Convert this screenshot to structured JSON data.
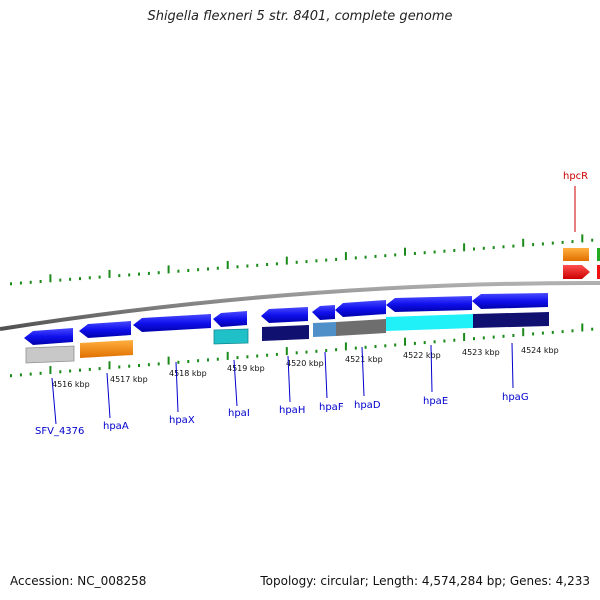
{
  "title": "Shigella flexneri 5 str. 8401, complete genome",
  "footer": {
    "accession": "Accession: NC_008258",
    "stats": "Topology: circular; Length: 4,574,284 bp; Genes: 4,233"
  },
  "kbp_labels": [
    "4516 kbp",
    "4517 kbp",
    "4518 kbp",
    "4519 kbp",
    "4520 kbp",
    "4521 kbp",
    "4522 kbp",
    "4523 kbp",
    "4524 kbp"
  ],
  "genes": [
    {
      "name": "SFV_4376",
      "color": "#0000cc"
    },
    {
      "name": "hpaA",
      "color": "#0000cc"
    },
    {
      "name": "hpaX",
      "color": "#0000cc"
    },
    {
      "name": "hpaI",
      "color": "#0000cc"
    },
    {
      "name": "hpaH",
      "color": "#0000cc"
    },
    {
      "name": "hpaF",
      "color": "#0000cc"
    },
    {
      "name": "hpaD",
      "color": "#0000cc"
    },
    {
      "name": "hpaE",
      "color": "#0000cc"
    },
    {
      "name": "hpaG",
      "color": "#0000cc"
    },
    {
      "name": "hpcR",
      "color": "#cc0000"
    }
  ],
  "colors": {
    "tick": "#1a8a1a",
    "backbone": "#8a8a8a",
    "arrow_blue": "#1010ee",
    "orange": "#ff8c00",
    "gray": "#c8c8c8",
    "dark_gray": "#6e6e6e",
    "teal": "#20c0c8",
    "cyan": "#20f0f8",
    "navy": "#101070",
    "steel": "#5090c8",
    "red": "#ee1010",
    "green": "#22aa22"
  }
}
